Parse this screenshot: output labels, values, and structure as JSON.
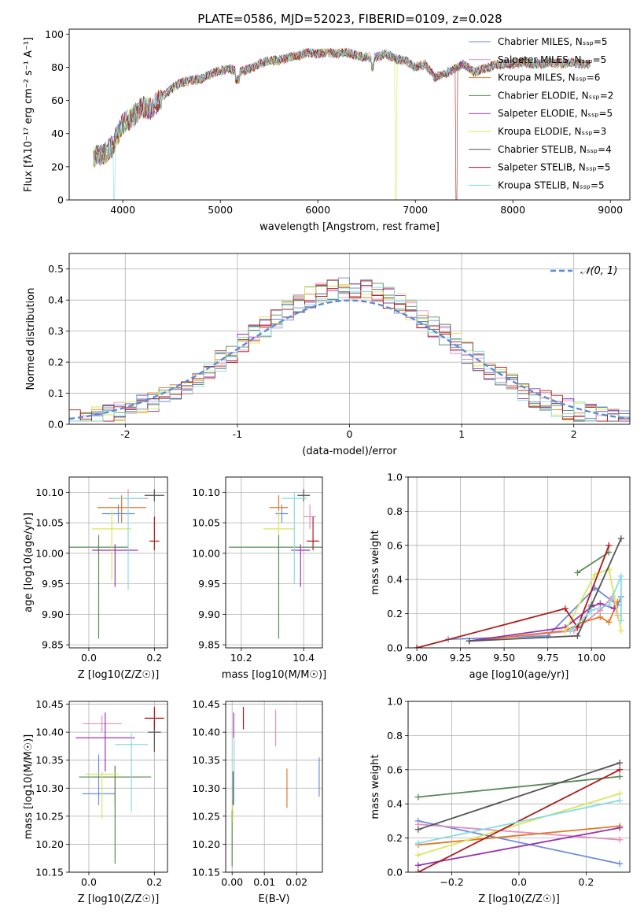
{
  "title": "PLATE=0586, MJD=52023, FIBERID=0109, z=0.028",
  "colors": {
    "chabrier_miles": "#6b8cdb",
    "salpeter_miles": "#e48fbd",
    "kroupa_miles": "#e07a2a",
    "chabrier_elodie": "#5a8a5a",
    "salpeter_elodie": "#9b34b0",
    "kroupa_elodie": "#d8e65a",
    "chabrier_stelib": "#555555",
    "salpeter_stelib": "#b01a1a",
    "kroupa_stelib": "#86dbe6"
  },
  "chart_data": [
    {
      "id": "spectrum",
      "type": "line",
      "xlabel": "wavelength [Angstrom, rest frame]",
      "ylabel": "Flux [fλ10⁻¹⁷ erg cm⁻² s⁻¹ A⁻¹]",
      "xlim": [
        3450,
        9200
      ],
      "ylim": [
        0,
        103
      ],
      "xticks": [
        4000,
        5000,
        6000,
        7000,
        8000,
        9000
      ],
      "yticks": [
        0,
        20,
        40,
        60,
        80,
        100
      ],
      "legend_loc": "top-right",
      "legend": [
        "Chabrier MILES, Nₛₛₚ=5",
        "Salpeter MILES, Nₛₛₚ=5",
        "Kroupa MILES, Nₛₛₚ=6",
        "Chabrier ELODIE, Nₛₛₚ=2",
        "Salpeter ELODIE, Nₛₛₚ=5",
        "Kroupa ELODIE, Nₛₛₚ=3",
        "Chabrier STELIB, Nₛₛₚ=4",
        "Salpeter STELIB, Nₛₛₚ=5",
        "Kroupa STELIB, Nₛₛₚ=5"
      ],
      "spectrum": {
        "x": [
          3700,
          3800,
          3900,
          3950,
          4000,
          4100,
          4200,
          4300,
          4400,
          4500,
          4600,
          4700,
          4800,
          4900,
          5000,
          5100,
          5200,
          5300,
          5400,
          5500,
          5600,
          5700,
          5800,
          5900,
          6000,
          6100,
          6200,
          6300,
          6400,
          6500,
          6600,
          6700,
          6800,
          6900,
          7000,
          7100,
          7200,
          7300,
          7400,
          7500,
          7600,
          7700,
          7800,
          7900,
          8000,
          8100,
          8200,
          8300,
          8400,
          8500,
          8600,
          8700,
          8800
        ],
        "y": [
          26,
          27,
          33,
          40,
          46,
          50,
          56,
          55,
          62,
          67,
          71,
          72,
          73,
          76,
          78,
          79,
          77,
          79,
          82,
          84,
          84,
          86,
          87,
          89,
          88,
          89,
          88,
          89,
          87,
          86,
          86,
          88,
          85,
          84,
          80,
          82,
          74,
          76,
          79,
          82,
          77,
          79,
          81,
          82,
          82,
          83,
          82,
          82,
          83,
          82,
          83,
          82,
          82
        ]
      },
      "dropouts": [
        {
          "series": "Kroupa STELIB",
          "x": 3910
        },
        {
          "series": "Kroupa ELODIE",
          "x": 6800
        },
        {
          "series": "Salpeter STELIB",
          "x": 7420
        }
      ]
    },
    {
      "id": "residuals",
      "type": "histogram",
      "xlabel": "(data-model)/error",
      "ylabel": "Normed distribution",
      "xlim": [
        -2.5,
        2.5
      ],
      "ylim": [
        0,
        0.55
      ],
      "xticks": [
        -2,
        -1,
        0,
        1,
        2
      ],
      "yticks": [
        0.0,
        0.1,
        0.2,
        0.3,
        0.4,
        0.5
      ],
      "grid": true,
      "legend_loc": "top-right",
      "gaussian_label": "𝒩(0, 1)",
      "bin_width": 0.1,
      "bin_start": -2.5
    },
    {
      "id": "z_age",
      "type": "errorbar",
      "xlabel": "Z [log10(Z/Z☉)]",
      "ylabel": "age [log10(age/yr)]",
      "xlim": [
        -0.06,
        0.24
      ],
      "ylim": [
        9.845,
        10.125
      ],
      "xticks": [
        0.0,
        0.2
      ],
      "yticks": [
        9.85,
        9.9,
        9.95,
        10.0,
        10.05,
        10.1
      ],
      "grid": true,
      "points": [
        {
          "series": "chabrier_miles",
          "x": 0.09,
          "xerr": 0.05,
          "y": 10.065,
          "yerr_lo": 0.015,
          "yerr_hi": 0.015
        },
        {
          "series": "salpeter_miles",
          "x": 0.12,
          "xerr": 0.06,
          "y": 10.09,
          "yerr_lo": 0.015,
          "yerr_hi": 0.015
        },
        {
          "series": "kroupa_miles",
          "x": 0.1,
          "xerr": 0.075,
          "y": 10.075,
          "yerr_lo": 0.025,
          "yerr_hi": 0.02
        },
        {
          "series": "chabrier_elodie",
          "x": 0.03,
          "xerr": 0.09,
          "y": 10.01,
          "yerr_lo": 0.15,
          "yerr_hi": 0.02
        },
        {
          "series": "salpeter_elodie",
          "x": 0.08,
          "xerr": 0.07,
          "y": 10.005,
          "yerr_lo": 0.06,
          "yerr_hi": 0.01
        },
        {
          "series": "kroupa_elodie",
          "x": 0.07,
          "xerr": 0.06,
          "y": 10.04,
          "yerr_lo": 0.085,
          "yerr_hi": 0.03
        },
        {
          "series": "chabrier_stelib",
          "x": 0.2,
          "xerr": 0.03,
          "y": 10.095,
          "yerr_lo": 0.01,
          "yerr_hi": 0.01
        },
        {
          "series": "salpeter_stelib",
          "x": 0.2,
          "xerr": 0.015,
          "y": 10.02,
          "yerr_lo": 0.015,
          "yerr_hi": 0.04
        },
        {
          "series": "kroupa_stelib",
          "x": 0.12,
          "xerr": 0.05,
          "y": 10.09,
          "yerr_lo": 0.15,
          "yerr_hi": 0.005
        }
      ]
    },
    {
      "id": "mass_age",
      "type": "errorbar",
      "xlabel": "mass [log10(M/M☉)]",
      "ylabel": "",
      "xlim": [
        10.15,
        10.46
      ],
      "ylim": [
        9.845,
        10.125
      ],
      "xticks": [
        10.2,
        10.4
      ],
      "yticks": [
        9.85,
        9.9,
        9.95,
        10.0,
        10.05,
        10.1
      ],
      "grid": true,
      "points": [
        {
          "series": "chabrier_miles",
          "x": 10.33,
          "xerr": 0.02,
          "y": 10.065,
          "yerr_lo": 0.015,
          "yerr_hi": 0.015
        },
        {
          "series": "salpeter_miles",
          "x": 10.42,
          "xerr": 0.02,
          "y": 10.06,
          "yerr_lo": 0.02,
          "yerr_hi": 0.02
        },
        {
          "series": "kroupa_miles",
          "x": 10.32,
          "xerr": 0.03,
          "y": 10.075,
          "yerr_lo": 0.02,
          "yerr_hi": 0.02
        },
        {
          "series": "chabrier_elodie",
          "x": 10.32,
          "xerr": 0.16,
          "y": 10.01,
          "yerr_lo": 0.15,
          "yerr_hi": 0.02
        },
        {
          "series": "salpeter_elodie",
          "x": 10.39,
          "xerr": 0.03,
          "y": 10.005,
          "yerr_lo": 0.06,
          "yerr_hi": 0.01
        },
        {
          "series": "kroupa_elodie",
          "x": 10.32,
          "xerr": 0.05,
          "y": 10.04,
          "yerr_lo": 0.01,
          "yerr_hi": 0.03
        },
        {
          "series": "chabrier_stelib",
          "x": 10.4,
          "xerr": 0.02,
          "y": 10.095,
          "yerr_lo": 0.01,
          "yerr_hi": 0.01
        },
        {
          "series": "salpeter_stelib",
          "x": 10.43,
          "xerr": 0.02,
          "y": 10.02,
          "yerr_lo": 0.015,
          "yerr_hi": 0.04
        },
        {
          "series": "kroupa_stelib",
          "x": 10.37,
          "xerr": 0.04,
          "y": 10.09,
          "yerr_lo": 0.14,
          "yerr_hi": 0.01
        }
      ]
    },
    {
      "id": "age_weight",
      "type": "line",
      "xlabel": "age  [log10(age/yr)]",
      "ylabel": "mass weight",
      "xlim": [
        8.95,
        10.22
      ],
      "ylim": [
        0,
        1
      ],
      "xticks": [
        9.0,
        9.25,
        9.5,
        9.75,
        10.0
      ],
      "xticklabels": [
        "9.00",
        "9.25",
        "9.50",
        "9.75",
        "10.00"
      ],
      "yticks": [
        0.0,
        0.2,
        0.4,
        0.6,
        0.8,
        1.0
      ],
      "grid": true,
      "series": [
        {
          "key": "chabrier_miles",
          "x": [
            9.18,
            9.75,
            10.02,
            10.15,
            10.17
          ],
          "y": [
            0.05,
            0.07,
            0.35,
            0.25,
            0.3
          ]
        },
        {
          "key": "salpeter_miles",
          "x": [
            9.3,
            9.9,
            10.05,
            10.12,
            10.15
          ],
          "y": [
            0.04,
            0.1,
            0.22,
            0.3,
            0.19
          ]
        },
        {
          "key": "kroupa_miles",
          "x": [
            9.3,
            9.85,
            9.95,
            10.05,
            10.1,
            10.15
          ],
          "y": [
            0.04,
            0.1,
            0.15,
            0.18,
            0.15,
            0.27
          ]
        },
        {
          "key": "chabrier_elodie",
          "x": [
            9.92,
            10.1
          ],
          "y": [
            0.44,
            0.56
          ]
        },
        {
          "key": "salpeter_elodie",
          "x": [
            9.3,
            9.85,
            10.0,
            10.05,
            10.13
          ],
          "y": [
            0.04,
            0.12,
            0.24,
            0.26,
            0.23
          ]
        },
        {
          "key": "kroupa_elodie",
          "x": [
            9.85,
            10.02,
            10.1,
            10.17
          ],
          "y": [
            0.1,
            0.43,
            0.46,
            0.1
          ]
        },
        {
          "key": "chabrier_stelib",
          "x": [
            9.3,
            9.92,
            10.0,
            10.17
          ],
          "y": [
            0.04,
            0.07,
            0.25,
            0.64
          ]
        },
        {
          "key": "salpeter_stelib",
          "x": [
            9.0,
            9.85,
            9.92,
            10.1
          ],
          "y": [
            0.0,
            0.23,
            0.12,
            0.6
          ]
        },
        {
          "key": "kroupa_stelib",
          "x": [
            9.88,
            10.0,
            10.1,
            10.17,
            10.17
          ],
          "y": [
            0.1,
            0.22,
            0.25,
            0.42,
            0.16
          ]
        }
      ]
    },
    {
      "id": "z_mass",
      "type": "errorbar",
      "xlabel": "Z [log10(Z/Z☉)]",
      "ylabel": "mass [log10(M/M☉)]",
      "xlim": [
        -0.06,
        0.24
      ],
      "ylim": [
        10.15,
        10.455
      ],
      "xticks": [
        0.0,
        0.2
      ],
      "yticks": [
        10.15,
        10.2,
        10.25,
        10.3,
        10.35,
        10.4,
        10.45
      ],
      "grid": true,
      "points": [
        {
          "series": "chabrier_miles",
          "x": 0.03,
          "xerr": 0.05,
          "y": 10.29,
          "yerr_lo": 0.02,
          "yerr_hi": 0.07
        },
        {
          "series": "salpeter_miles",
          "x": 0.04,
          "xerr": 0.06,
          "y": 10.415,
          "yerr_lo": 0.015,
          "yerr_hi": 0.015
        },
        {
          "series": "kroupa_miles",
          "x": 0.08,
          "xerr": 0.07,
          "y": 10.32,
          "yerr_lo": 0.05,
          "yerr_hi": 0.02
        },
        {
          "series": "chabrier_elodie",
          "x": 0.08,
          "xerr": 0.11,
          "y": 10.32,
          "yerr_lo": 0.155,
          "yerr_hi": 0.02
        },
        {
          "series": "salpeter_elodie",
          "x": 0.05,
          "xerr": 0.09,
          "y": 10.39,
          "yerr_lo": 0.06,
          "yerr_hi": 0.045
        },
        {
          "series": "kroupa_elodie",
          "x": 0.04,
          "xerr": 0.05,
          "y": 10.325,
          "yerr_lo": 0.08,
          "yerr_hi": 0.005
        },
        {
          "series": "chabrier_stelib",
          "x": 0.2,
          "xerr": 0.02,
          "y": 10.4,
          "yerr_lo": 0.035,
          "yerr_hi": 0.02
        },
        {
          "series": "salpeter_stelib",
          "x": 0.2,
          "xerr": 0.03,
          "y": 10.425,
          "yerr_lo": 0.02,
          "yerr_hi": 0.02
        },
        {
          "series": "kroupa_stelib",
          "x": 0.13,
          "xerr": 0.05,
          "y": 10.378,
          "yerr_lo": 0.12,
          "yerr_hi": 0.02
        }
      ]
    },
    {
      "id": "ebv_mass",
      "type": "errorbar",
      "xlabel": "E(B-V)",
      "ylabel": "",
      "xlim": [
        -0.002,
        0.028
      ],
      "ylim": [
        10.15,
        10.455
      ],
      "xticks": [
        0.0,
        0.01,
        0.02
      ],
      "xticklabels": [
        "0.00",
        "0.01",
        "0.02"
      ],
      "yticks": [
        10.15,
        10.2,
        10.25,
        10.3,
        10.35,
        10.4,
        10.45
      ],
      "grid": true,
      "points": [
        {
          "series": "chabrier_miles",
          "x": 0.027,
          "xerr": 0,
          "y": 10.32,
          "yerr_lo": 0.035,
          "yerr_hi": 0.035
        },
        {
          "series": "salpeter_miles",
          "x": 0.0135,
          "xerr": 0,
          "y": 10.41,
          "yerr_lo": 0.035,
          "yerr_hi": 0.03
        },
        {
          "series": "kroupa_miles",
          "x": 0.017,
          "xerr": 0,
          "y": 10.3,
          "yerr_lo": 0.035,
          "yerr_hi": 0.035
        },
        {
          "series": "chabrier_elodie",
          "x": 0.0,
          "xerr": 0,
          "y": 10.2,
          "yerr_lo": 0.04,
          "yerr_hi": 0.06
        },
        {
          "series": "salpeter_elodie",
          "x": 0.0005,
          "xerr": 0,
          "y": 10.41,
          "yerr_lo": 0.02,
          "yerr_hi": 0.025
        },
        {
          "series": "kroupa_elodie",
          "x": 0.0002,
          "xerr": 0,
          "y": 10.26,
          "yerr_lo": 0.02,
          "yerr_hi": 0.02
        },
        {
          "series": "chabrier_stelib",
          "x": 0.0003,
          "xerr": 0,
          "y": 10.3,
          "yerr_lo": 0.03,
          "yerr_hi": 0.03
        },
        {
          "series": "salpeter_stelib",
          "x": 0.0035,
          "xerr": 0,
          "y": 10.425,
          "yerr_lo": 0.02,
          "yerr_hi": 0.02
        },
        {
          "series": "kroupa_stelib",
          "x": 0.0006,
          "xerr": 0,
          "y": 10.33,
          "yerr_lo": 0.06,
          "yerr_hi": 0.06
        }
      ]
    },
    {
      "id": "z_weight",
      "type": "line",
      "xlabel": "Z [log10(Z/Z☉)]",
      "ylabel": "mass weight",
      "xlim": [
        -0.33,
        0.33
      ],
      "ylim": [
        0,
        1
      ],
      "xticks": [
        -0.2,
        0.0,
        0.2
      ],
      "xticklabels": [
        "−0.2",
        "0.0",
        "0.2"
      ],
      "yticks": [
        0.0,
        0.2,
        0.4,
        0.6,
        0.8,
        1.0
      ],
      "grid": true,
      "series": [
        {
          "key": "chabrier_miles",
          "x": [
            -0.3,
            0.3
          ],
          "y": [
            0.3,
            0.05
          ]
        },
        {
          "key": "salpeter_miles",
          "x": [
            -0.3,
            0.3
          ],
          "y": [
            0.28,
            0.19
          ]
        },
        {
          "key": "kroupa_miles",
          "x": [
            -0.3,
            0.3
          ],
          "y": [
            0.16,
            0.27
          ]
        },
        {
          "key": "chabrier_elodie",
          "x": [
            -0.3,
            0.3
          ],
          "y": [
            0.44,
            0.56
          ]
        },
        {
          "key": "salpeter_elodie",
          "x": [
            -0.3,
            0.3
          ],
          "y": [
            0.04,
            0.26
          ]
        },
        {
          "key": "kroupa_elodie",
          "x": [
            -0.3,
            0.3
          ],
          "y": [
            0.1,
            0.46
          ]
        },
        {
          "key": "chabrier_stelib",
          "x": [
            -0.3,
            0.3
          ],
          "y": [
            0.25,
            0.64
          ]
        },
        {
          "key": "salpeter_stelib",
          "x": [
            -0.3,
            0.3
          ],
          "y": [
            0.0,
            0.6
          ]
        },
        {
          "key": "kroupa_stelib",
          "x": [
            -0.3,
            0.3
          ],
          "y": [
            0.17,
            0.42
          ]
        }
      ]
    }
  ]
}
